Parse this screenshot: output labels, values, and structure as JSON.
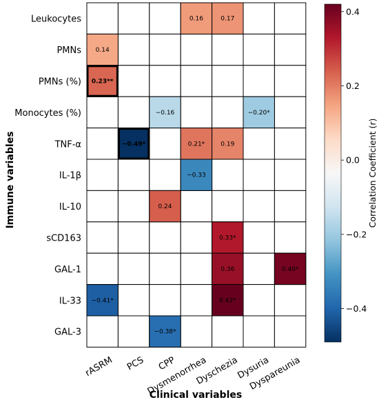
{
  "chart_data": {
    "type": "heatmap",
    "xlabel": "Clinical variables",
    "ylabel": "Immune variables",
    "rows": [
      "Leukocytes",
      "PMNs",
      "PMNs (%)",
      "Monocytes (%)",
      "TNF-α",
      "IL-1β",
      "IL-10",
      "sCD163",
      "GAL-1",
      "IL-33",
      "GAL-3"
    ],
    "columns": [
      "rASRM",
      "PCS",
      "CPP",
      "Dysmenorrhea",
      "Dyschezia",
      "Dysuria",
      "Dyspareunia"
    ],
    "cells": [
      {
        "row": 0,
        "col": 3,
        "value": 0.16,
        "label": "0.16"
      },
      {
        "row": 0,
        "col": 4,
        "value": 0.17,
        "label": "0.17"
      },
      {
        "row": 1,
        "col": 0,
        "value": 0.14,
        "label": "0.14"
      },
      {
        "row": 2,
        "col": 0,
        "value": 0.23,
        "label": "0.23**",
        "highlight": true
      },
      {
        "row": 3,
        "col": 2,
        "value": -0.16,
        "label": "−0.16"
      },
      {
        "row": 3,
        "col": 5,
        "value": -0.2,
        "label": "−0.20*"
      },
      {
        "row": 4,
        "col": 1,
        "value": -0.49,
        "label": "−0.49*",
        "highlight": true
      },
      {
        "row": 4,
        "col": 3,
        "value": 0.21,
        "label": "0.21*"
      },
      {
        "row": 4,
        "col": 4,
        "value": 0.19,
        "label": "0.19"
      },
      {
        "row": 5,
        "col": 3,
        "value": -0.33,
        "label": "−0.33"
      },
      {
        "row": 6,
        "col": 2,
        "value": 0.24,
        "label": "0.24"
      },
      {
        "row": 7,
        "col": 4,
        "value": 0.33,
        "label": "0.33*"
      },
      {
        "row": 8,
        "col": 4,
        "value": 0.36,
        "label": "0.36"
      },
      {
        "row": 8,
        "col": 6,
        "value": 0.4,
        "label": "0.40*"
      },
      {
        "row": 9,
        "col": 0,
        "value": -0.41,
        "label": "−0.41*"
      },
      {
        "row": 9,
        "col": 4,
        "value": 0.42,
        "label": "0.42*"
      },
      {
        "row": 10,
        "col": 2,
        "value": -0.38,
        "label": "−0.38*"
      }
    ],
    "colorbar": {
      "title": "Correlation Coefficient (r)",
      "range": [
        -0.49,
        0.42
      ],
      "ticks": [
        0.4,
        0.2,
        0.0,
        -0.2,
        -0.4
      ],
      "tick_labels": [
        "0.4",
        "0.2",
        "0.0",
        "−0.2",
        "−0.4"
      ],
      "colormap": "RdBu_r",
      "colors": [
        "#053061",
        "#2166ac",
        "#4393c3",
        "#92c5de",
        "#d1e5f0",
        "#f7f7f7",
        "#fddbc7",
        "#f4a582",
        "#d6604d",
        "#b2182b",
        "#67001f"
      ]
    }
  }
}
